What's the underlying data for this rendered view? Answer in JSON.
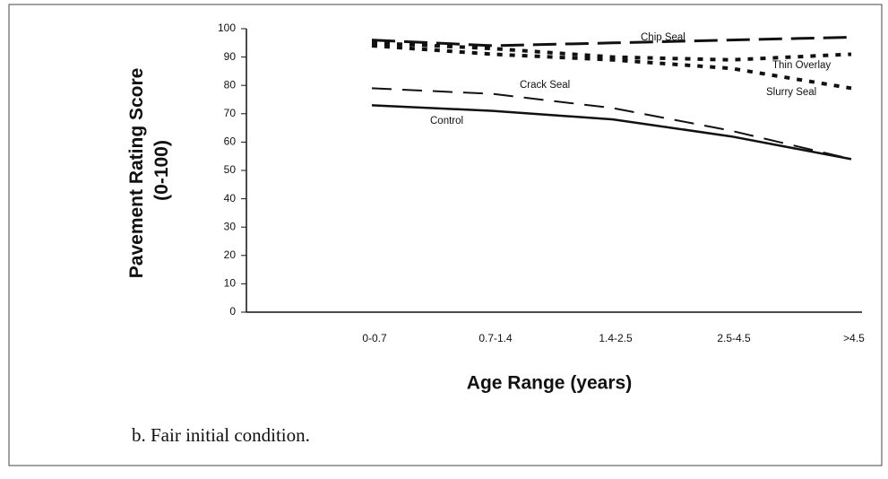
{
  "chart_data": {
    "type": "line",
    "y_label": [
      "Pavement Rating Score",
      "(0-100)"
    ],
    "x_label": "Age Range (years)",
    "caption": "b. Fair initial condition.",
    "categories": [
      "0-0.7",
      "0.7-1.4",
      "1.4-2.5",
      "2.5-4.5",
      ">4.5"
    ],
    "ylim": [
      0,
      100
    ],
    "yticks": [
      0,
      10,
      20,
      30,
      40,
      50,
      60,
      70,
      80,
      90,
      100
    ],
    "series": [
      {
        "name": "Chip Seal",
        "color": "#111111",
        "style": "long-dash",
        "values": [
          96,
          94,
          95,
          96,
          97
        ]
      },
      {
        "name": "Thin Overlay",
        "color": "#111111",
        "style": "dotted",
        "values": [
          95,
          93,
          90,
          89,
          91
        ]
      },
      {
        "name": "Slurry Seal",
        "color": "#111111",
        "style": "dotted",
        "values": [
          94,
          91,
          89,
          86,
          79
        ]
      },
      {
        "name": "Crack Seal",
        "color": "#111111",
        "style": "dashed",
        "values": [
          79,
          77,
          72,
          64,
          54
        ]
      },
      {
        "name": "Control",
        "color": "#111111",
        "style": "solid",
        "values": [
          73,
          71,
          68,
          62,
          54
        ]
      }
    ]
  }
}
